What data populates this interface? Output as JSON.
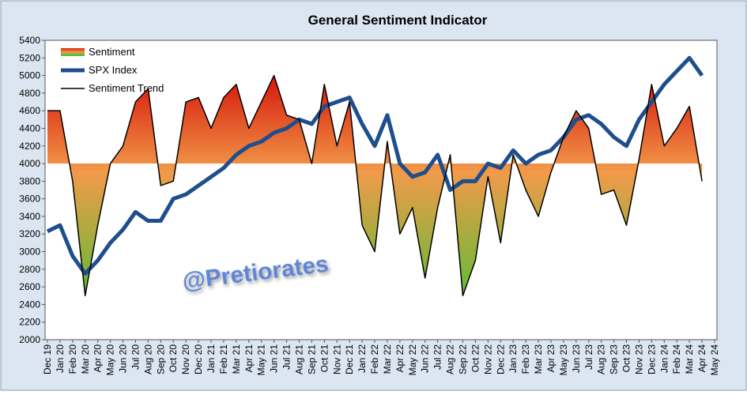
{
  "chart_data": {
    "type": "line",
    "title": "General Sentiment Indicator",
    "annotation": "@Pretiorates",
    "categories": [
      "Dec 19",
      "Jan 20",
      "Feb 20",
      "Mar 20",
      "Apr 20",
      "May 20",
      "Jun 20",
      "Jul 20",
      "Aug 20",
      "Sep 20",
      "Oct 20",
      "Nov 20",
      "Dec 20",
      "Jan 21",
      "Feb 21",
      "Mar 21",
      "Apr 21",
      "May 21",
      "Jun 21",
      "Jul 21",
      "Aug 21",
      "Sep 21",
      "Oct 21",
      "Nov 21",
      "Dec 21",
      "Jan 22",
      "Feb 22",
      "Mar 22",
      "Apr 22",
      "May 22",
      "Jun 22",
      "Jul 22",
      "Aug 22",
      "Sep 22",
      "Oct 22",
      "Nov 22",
      "Dec 22",
      "Jan 23",
      "Feb 23",
      "Mar 23",
      "Apr 23",
      "May 23",
      "Jun 23",
      "Jul 23",
      "Aug 23",
      "Sep 23",
      "Oct 23",
      "Nov 23",
      "Dec 23",
      "Jan 24",
      "Feb 24",
      "Mar 24",
      "Apr 24",
      "May 24"
    ],
    "series": [
      {
        "name": "Sentiment",
        "kind": "area",
        "fill_baseline": 4000,
        "gradient": [
          "#d81e0e",
          "#f29a4a",
          "#2ec830"
        ],
        "values": [
          4600,
          4600,
          3800,
          2500,
          3300,
          4000,
          4200,
          4700,
          4850,
          3750,
          3800,
          4700,
          4750,
          4400,
          4750,
          4900,
          4400,
          4700,
          5000,
          4550,
          4500,
          4000,
          4900,
          4200,
          4700,
          3300,
          3000,
          4250,
          3200,
          3500,
          2700,
          3500,
          4100,
          2500,
          2900,
          3850,
          3100,
          4100,
          3700,
          3400,
          3900,
          4300,
          4600,
          4400,
          3650,
          3700,
          3300,
          4050,
          4900,
          4200,
          4400,
          4650,
          3800,
          null
        ]
      },
      {
        "name": "SPX Index",
        "kind": "line",
        "color": "#1f4e8c",
        "width": 5,
        "values": [
          3230,
          3300,
          2950,
          2750,
          2900,
          3100,
          3250,
          3450,
          3350,
          3350,
          3600,
          3650,
          3750,
          3850,
          3950,
          4100,
          4200,
          4250,
          4350,
          4400,
          4500,
          4450,
          4650,
          4700,
          4750,
          4450,
          4200,
          4550,
          4000,
          3850,
          3900,
          4100,
          3700,
          3800,
          3800,
          4000,
          3950,
          4150,
          4000,
          4100,
          4150,
          4300,
          4500,
          4550,
          4450,
          4300,
          4200,
          4500,
          4700,
          4900,
          5050,
          5200,
          5000,
          null
        ]
      },
      {
        "name": "Sentiment Trend",
        "kind": "line",
        "color": "#000000",
        "width": 1.5,
        "values": [
          4600,
          4600,
          3800,
          2500,
          3300,
          4000,
          4200,
          4700,
          4850,
          3750,
          3800,
          4700,
          4750,
          4400,
          4750,
          4900,
          4400,
          4700,
          5000,
          4550,
          4500,
          4000,
          4900,
          4200,
          4700,
          3300,
          3000,
          4250,
          3200,
          3500,
          2700,
          3500,
          4100,
          2500,
          2900,
          3850,
          3100,
          4100,
          3700,
          3400,
          3900,
          4300,
          4600,
          4400,
          3650,
          3700,
          3300,
          4050,
          4900,
          4200,
          4400,
          4650,
          3800,
          null
        ]
      }
    ],
    "ylim": [
      2000,
      5400
    ],
    "yticks": [
      2000,
      2200,
      2400,
      2600,
      2800,
      3000,
      3200,
      3400,
      3600,
      3800,
      4000,
      4200,
      4400,
      4600,
      4800,
      5000,
      5200,
      5400
    ],
    "legend": "top-left"
  }
}
